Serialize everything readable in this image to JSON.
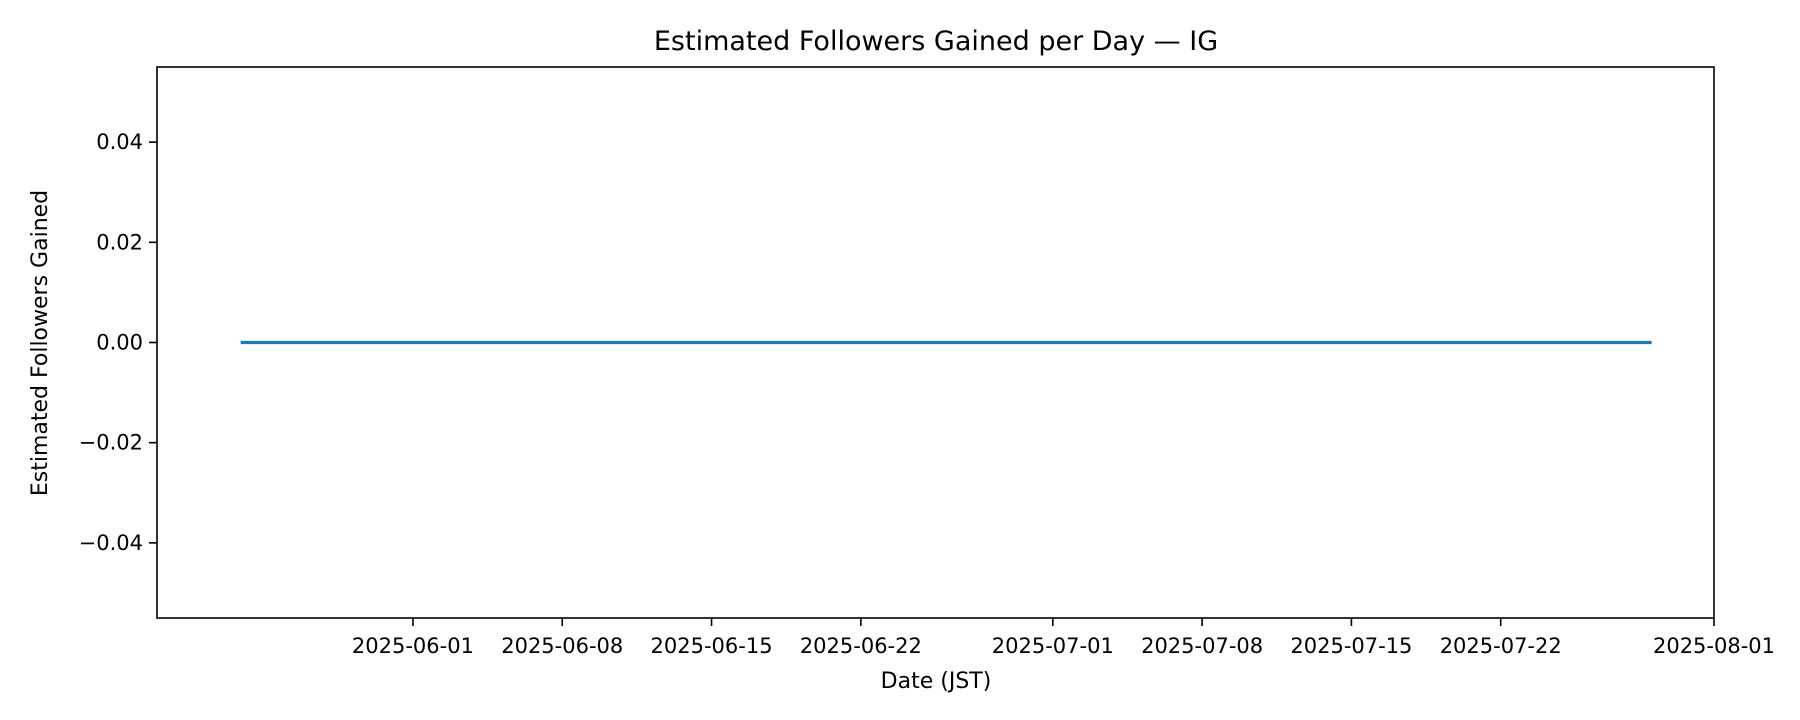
{
  "chart_data": {
    "type": "line",
    "title": "Estimated Followers Gained per Day — IG",
    "xlabel": "Date (JST)",
    "ylabel": "Estimated Followers Gained",
    "x_tick_labels": [
      "2025-06-01",
      "2025-06-08",
      "2025-06-15",
      "2025-06-22",
      "2025-07-01",
      "2025-07-08",
      "2025-07-15",
      "2025-07-22",
      "2025-08-01"
    ],
    "y_tick_values": [
      0.04,
      0.02,
      0.0,
      -0.02,
      -0.04
    ],
    "y_tick_labels": [
      "0.04",
      "0.02",
      "0.00",
      "−0.02",
      "−0.04"
    ],
    "xlim": [
      "2025-05-20",
      "2025-08-01"
    ],
    "ylim": [
      -0.055,
      0.055
    ],
    "grid": false,
    "series": [
      {
        "color": "#1f77b4",
        "x": [
          "2025-05-24",
          "2025-07-29"
        ],
        "y": [
          0,
          0
        ]
      }
    ]
  }
}
